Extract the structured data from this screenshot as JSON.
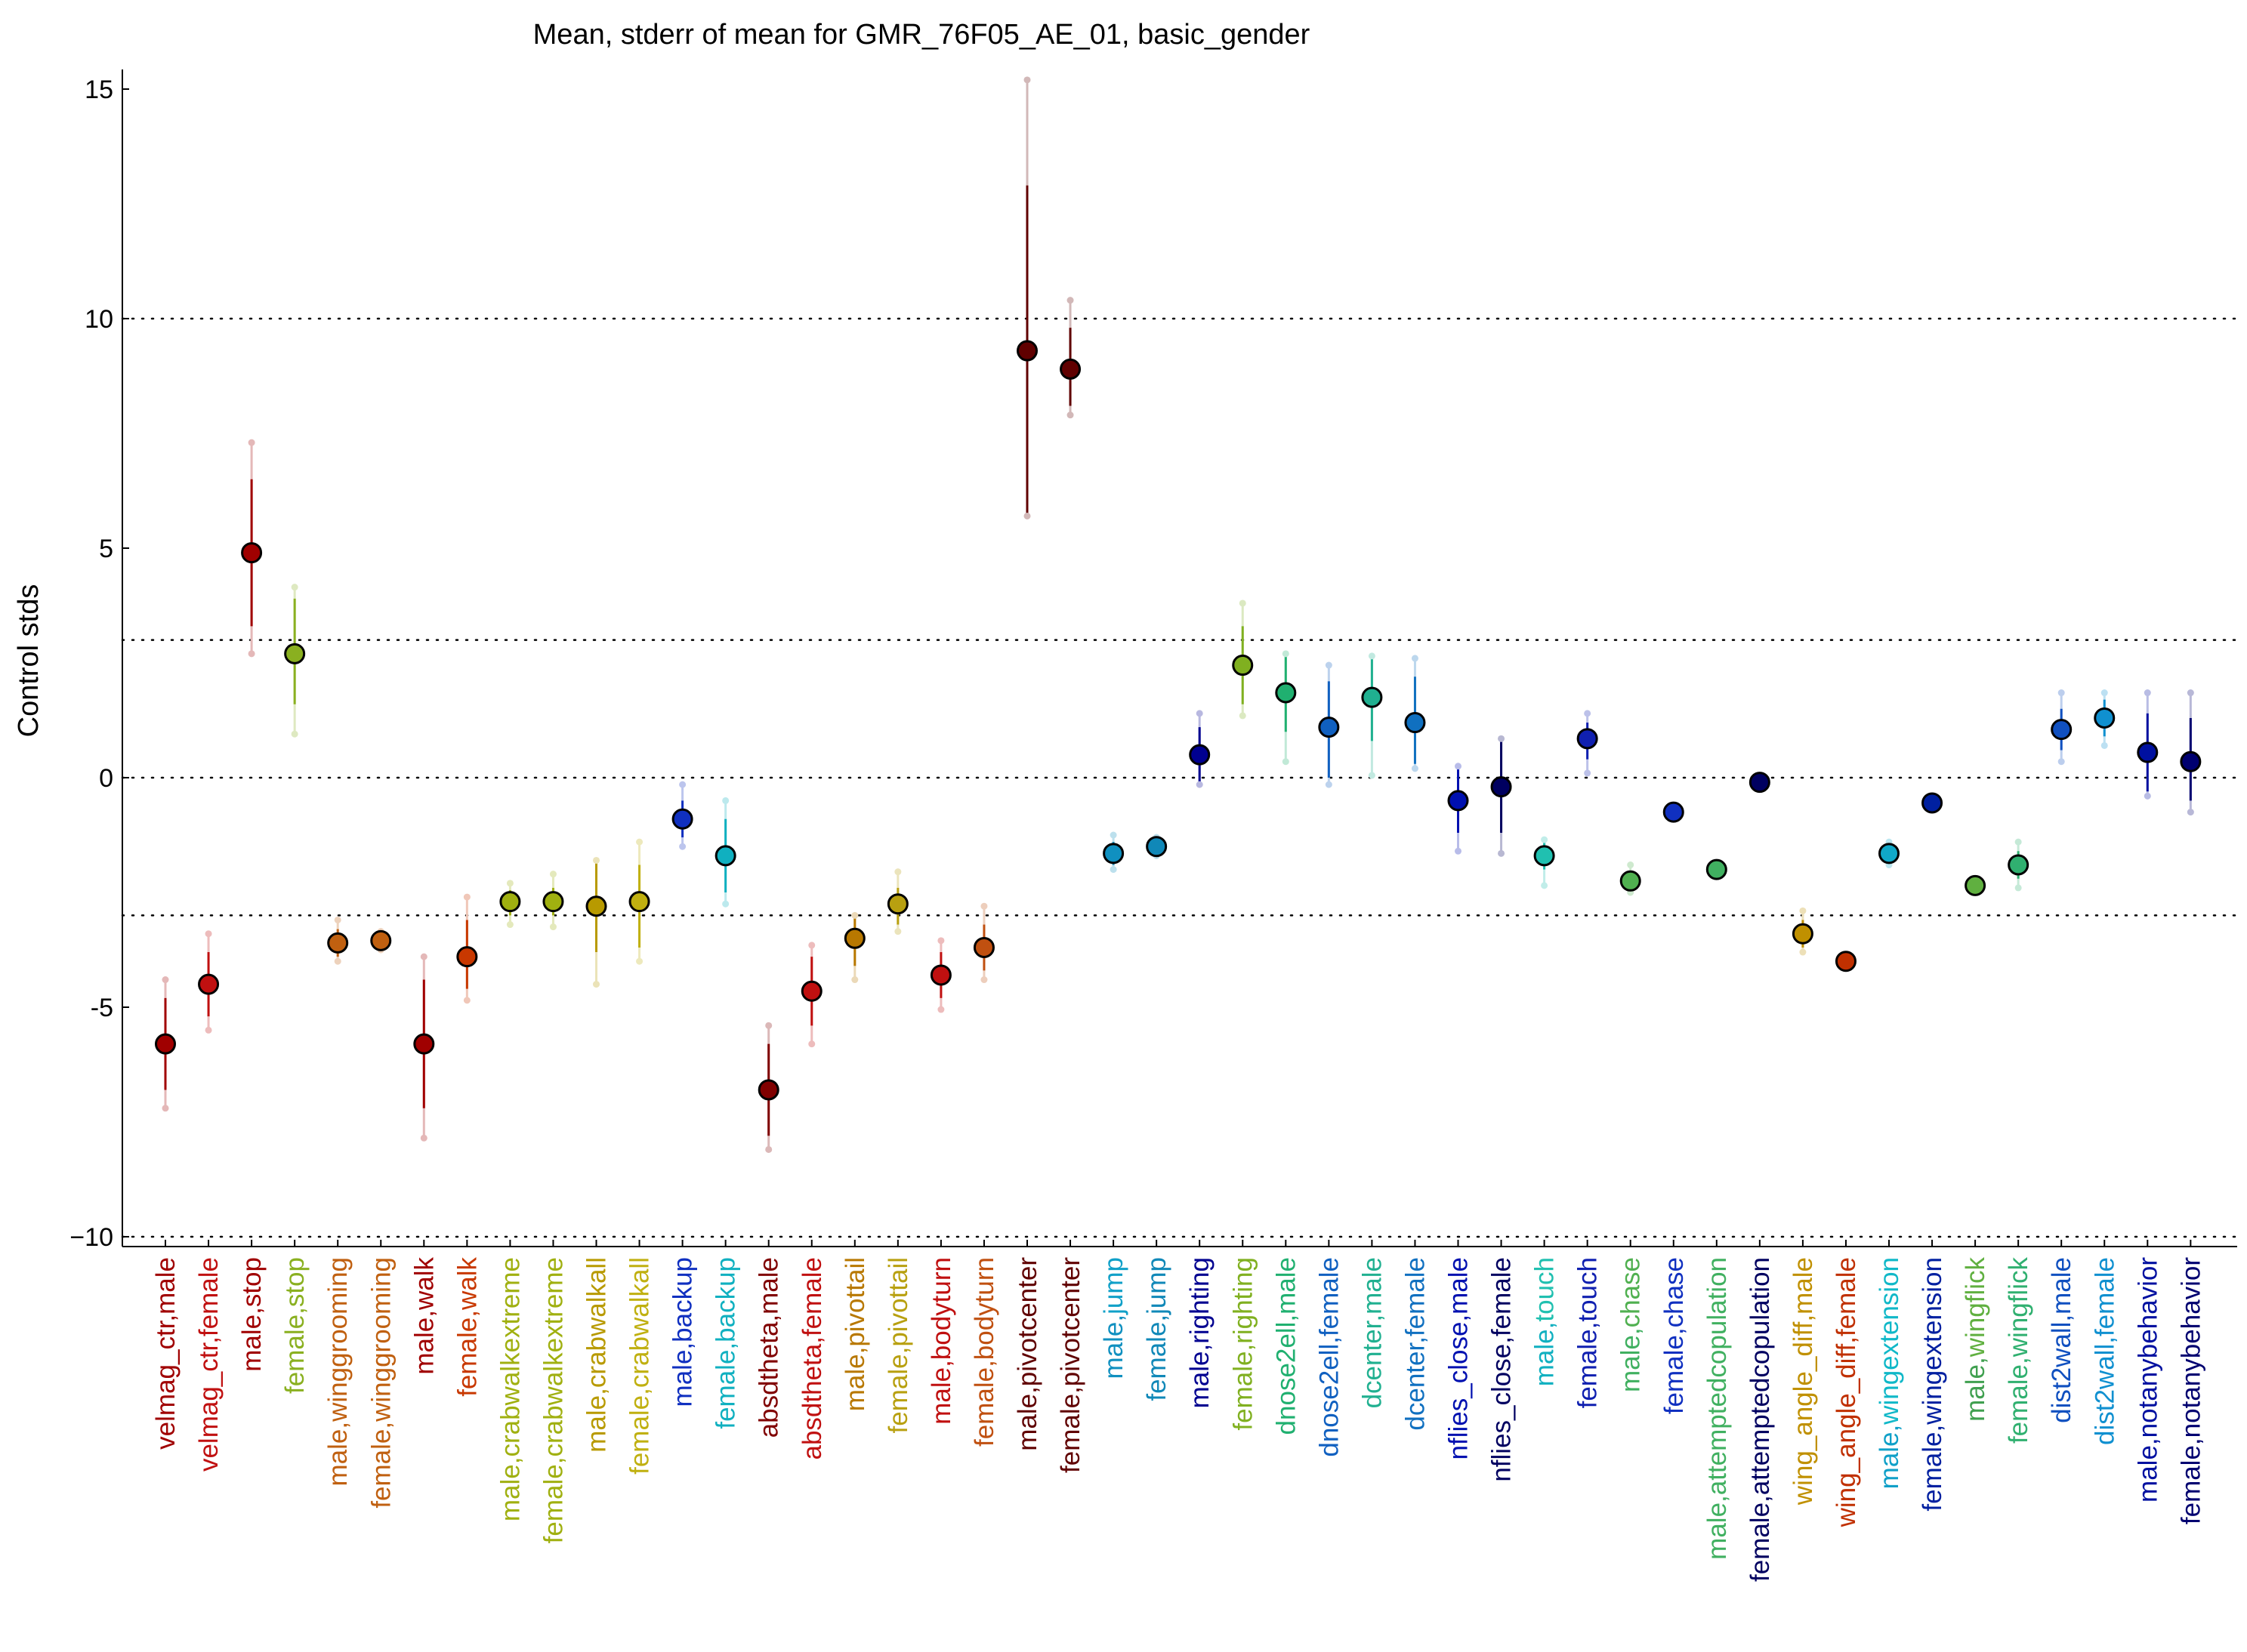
{
  "chart_data": {
    "type": "scatter",
    "title": "Mean, stderr of mean for GMR_76F05_AE_01, basic_gender",
    "xlabel": "",
    "ylabel": "Control stds",
    "ylim": [
      -10.3,
      15.5
    ],
    "yticks": [
      -10,
      -5,
      0,
      5,
      10,
      15
    ],
    "ytick_labels": [
      "−10",
      "-5",
      "0",
      "5",
      "10",
      "15"
    ],
    "reference_lines": [
      10,
      3,
      0,
      -3,
      -10
    ],
    "grid": false,
    "legend": "none",
    "points": [
      {
        "category": "velmag_ctr,male",
        "parts": [
          {
            "t": "velmag_ctr,male",
            "c": "#a00000"
          }
        ],
        "color": "#a00000",
        "mean": -5.8,
        "err_lo": -6.8,
        "err_hi": -4.8,
        "range_lo": -7.2,
        "range_hi": -4.4
      },
      {
        "category": "velmag_ctr,female",
        "parts": [
          {
            "t": "velmag_ctr,female",
            "c": "#c01010"
          }
        ],
        "color": "#c01010",
        "mean": -4.5,
        "err_lo": -5.2,
        "err_hi": -3.8,
        "range_lo": -5.5,
        "range_hi": -3.4
      },
      {
        "category": "male,stop",
        "parts": [
          {
            "t": "male,stop",
            "c": "#a00000"
          }
        ],
        "color": "#a00000",
        "mean": 4.9,
        "err_lo": 3.3,
        "err_hi": 6.5,
        "range_lo": 2.7,
        "range_hi": 7.3
      },
      {
        "category": "female,stop",
        "parts": [
          {
            "t": "female,stop",
            "c": "#8ab020"
          }
        ],
        "color": "#8ab020",
        "mean": 2.7,
        "err_lo": 1.6,
        "err_hi": 3.9,
        "range_lo": 0.95,
        "range_hi": 4.15
      },
      {
        "category": "male,winggrooming",
        "parts": [
          {
            "t": "male,winggrooming",
            "c": "#c06010"
          }
        ],
        "color": "#c06010",
        "mean": -3.6,
        "err_lo": -3.9,
        "err_hi": -3.3,
        "range_lo": -4.0,
        "range_hi": -3.1
      },
      {
        "category": "female,winggrooming",
        "parts": [
          {
            "t": "female,winggrooming",
            "c": "#c06010"
          }
        ],
        "color": "#c06010",
        "mean": -3.55,
        "err_lo": -3.7,
        "err_hi": -3.4,
        "range_lo": -3.75,
        "range_hi": -3.35
      },
      {
        "category": "male,walk",
        "parts": [
          {
            "t": "male,walk",
            "c": "#a00000"
          }
        ],
        "color": "#a00000",
        "mean": -5.8,
        "err_lo": -7.2,
        "err_hi": -4.4,
        "range_lo": -7.85,
        "range_hi": -3.9
      },
      {
        "category": "female,walk",
        "parts": [
          {
            "t": "female,walk",
            "c": "#c83800"
          }
        ],
        "color": "#c83800",
        "mean": -3.9,
        "err_lo": -4.6,
        "err_hi": -3.1,
        "range_lo": -4.85,
        "range_hi": -2.6
      },
      {
        "category": "male,crabwalkextreme",
        "parts": [
          {
            "t": "male,crabwalkextreme",
            "c": "#a0b010"
          }
        ],
        "color": "#a0b010",
        "mean": -2.7,
        "err_lo": -3.0,
        "err_hi": -2.45,
        "range_lo": -3.2,
        "range_hi": -2.3
      },
      {
        "category": "female,crabwalkextreme",
        "parts": [
          {
            "t": "female,crabwalkextreme",
            "c": "#a0b010"
          }
        ],
        "color": "#a0b010",
        "mean": -2.7,
        "err_lo": -3.0,
        "err_hi": -2.4,
        "range_lo": -3.25,
        "range_hi": -2.1
      },
      {
        "category": "male,crabwalkall",
        "parts": [
          {
            "t": "male,crabwalkall",
            "c": "#b89a00"
          }
        ],
        "color": "#b89a00",
        "mean": -2.8,
        "err_lo": -3.8,
        "err_hi": -1.8,
        "range_lo": -4.5,
        "range_hi": -1.8
      },
      {
        "category": "female,crabwalkall",
        "parts": [
          {
            "t": "female,crabwalkall",
            "c": "#c0b010"
          }
        ],
        "color": "#c0b010",
        "mean": -2.7,
        "err_lo": -3.7,
        "err_hi": -1.9,
        "range_lo": -4.0,
        "range_hi": -1.4
      },
      {
        "category": "male,backup",
        "parts": [
          {
            "t": "male,backup",
            "c": "#1030c0"
          }
        ],
        "color": "#1030c0",
        "mean": -0.9,
        "err_lo": -1.3,
        "err_hi": -0.5,
        "range_lo": -1.5,
        "range_hi": -0.15
      },
      {
        "category": "female,backup",
        "parts": [
          {
            "t": "female,backup",
            "c": "#10b0c0"
          }
        ],
        "color": "#10b0c0",
        "mean": -1.7,
        "err_lo": -2.5,
        "err_hi": -0.9,
        "range_lo": -2.75,
        "range_hi": -0.5
      },
      {
        "category": "absdtheta,male",
        "parts": [
          {
            "t": "absdtheta,male",
            "c": "#800000"
          }
        ],
        "color": "#800000",
        "mean": -6.8,
        "err_lo": -7.8,
        "err_hi": -5.8,
        "range_lo": -8.1,
        "range_hi": -5.4
      },
      {
        "category": "absdtheta,female",
        "parts": [
          {
            "t": "absdtheta,female",
            "c": "#c01010"
          }
        ],
        "color": "#c01010",
        "mean": -4.65,
        "err_lo": -5.4,
        "err_hi": -3.9,
        "range_lo": -5.8,
        "range_hi": -3.65
      },
      {
        "category": "male,pivottail",
        "parts": [
          {
            "t": "male,pivottail",
            "c": "#b87800"
          }
        ],
        "color": "#b87800",
        "mean": -3.5,
        "err_lo": -4.1,
        "err_hi": -3.0,
        "range_lo": -4.4,
        "range_hi": -3.0
      },
      {
        "category": "female,pivottail",
        "parts": [
          {
            "t": "female,pivottail",
            "c": "#b8a010"
          }
        ],
        "color": "#b8a010",
        "mean": -2.75,
        "err_lo": -3.2,
        "err_hi": -2.4,
        "range_lo": -3.35,
        "range_hi": -2.05
      },
      {
        "category": "male,bodyturn",
        "parts": [
          {
            "t": "male,bodyturn",
            "c": "#c01010"
          }
        ],
        "color": "#c01010",
        "mean": -4.3,
        "err_lo": -4.8,
        "err_hi": -3.8,
        "range_lo": -5.05,
        "range_hi": -3.55
      },
      {
        "category": "female,bodyturn",
        "parts": [
          {
            "t": "female,bodyturn",
            "c": "#c05010"
          }
        ],
        "color": "#c05010",
        "mean": -3.7,
        "err_lo": -4.2,
        "err_hi": -3.2,
        "range_lo": -4.4,
        "range_hi": -2.8
      },
      {
        "category": "male,pivotcenter",
        "parts": [
          {
            "t": "male,pivotcenter",
            "c": "#600000"
          }
        ],
        "color": "#600000",
        "mean": 9.3,
        "err_lo": 5.7,
        "err_hi": 12.9,
        "range_lo": 5.7,
        "range_hi": 15.2
      },
      {
        "category": "female,pivotcenter",
        "parts": [
          {
            "t": "female,pivotcenter",
            "c": "#600000"
          }
        ],
        "color": "#600000",
        "mean": 8.9,
        "err_lo": 8.1,
        "err_hi": 9.8,
        "range_lo": 7.9,
        "range_hi": 10.4
      },
      {
        "category": "male,jump",
        "parts": [
          {
            "t": "male,",
            "c": "#1090c0"
          },
          {
            "t": "jump",
            "c": "#10a0c8"
          }
        ],
        "color": "#1090c0",
        "mean": -1.65,
        "err_lo": -1.9,
        "err_hi": -1.4,
        "range_lo": -2.0,
        "range_hi": -1.25
      },
      {
        "category": "female,jump",
        "parts": [
          {
            "t": "female,jump",
            "c": "#1088b8"
          }
        ],
        "color": "#1088b8",
        "mean": -1.5,
        "err_lo": -1.6,
        "err_hi": -1.4,
        "range_lo": -1.7,
        "range_hi": -1.3
      },
      {
        "category": "male,righting",
        "parts": [
          {
            "t": "male,righting",
            "c": "#000090"
          }
        ],
        "color": "#000090",
        "mean": 0.5,
        "err_lo": -0.1,
        "err_hi": 1.1,
        "range_lo": -0.15,
        "range_hi": 1.4
      },
      {
        "category": "female,righting",
        "parts": [
          {
            "t": "female,righting",
            "c": "#80b020"
          }
        ],
        "color": "#80b020",
        "mean": 2.45,
        "err_lo": 1.6,
        "err_hi": 3.3,
        "range_lo": 1.35,
        "range_hi": 3.8
      },
      {
        "category": "dnose2ell,male",
        "parts": [
          {
            "t": "dnose2ell,male",
            "c": "#20b070"
          }
        ],
        "color": "#20b070",
        "mean": 1.85,
        "err_lo": 1.0,
        "err_hi": 2.7,
        "range_lo": 0.35,
        "range_hi": 2.7
      },
      {
        "category": "dnose2ell,female",
        "parts": [
          {
            "t": "dnose2ell,female",
            "c": "#1060c0"
          }
        ],
        "color": "#1060c0",
        "mean": 1.1,
        "err_lo": 0.0,
        "err_hi": 2.1,
        "range_lo": -0.15,
        "range_hi": 2.45
      },
      {
        "category": "dcenter,male",
        "parts": [
          {
            "t": "dcenter,male",
            "c": "#20b090"
          }
        ],
        "color": "#20b090",
        "mean": 1.75,
        "err_lo": 0.8,
        "err_hi": 2.6,
        "range_lo": 0.05,
        "range_hi": 2.65
      },
      {
        "category": "dcenter,female",
        "parts": [
          {
            "t": "dcenter,female",
            "c": "#1070c0"
          }
        ],
        "color": "#1070c0",
        "mean": 1.2,
        "err_lo": 0.3,
        "err_hi": 2.2,
        "range_lo": 0.2,
        "range_hi": 2.6
      },
      {
        "category": "nflies_close,male",
        "parts": [
          {
            "t": "nflies_close,male",
            "c": "#0010b0"
          }
        ],
        "color": "#0010b0",
        "mean": -0.5,
        "err_lo": -1.2,
        "err_hi": 0.2,
        "range_lo": -1.6,
        "range_hi": 0.25
      },
      {
        "category": "nflies_close,female",
        "parts": [
          {
            "t": "nflies_close,female",
            "c": "#000060"
          }
        ],
        "color": "#000060",
        "mean": -0.2,
        "err_lo": -1.2,
        "err_hi": 0.8,
        "range_lo": -1.65,
        "range_hi": 0.85
      },
      {
        "category": "male,touch",
        "parts": [
          {
            "t": "male,",
            "c": "#10b0c0"
          },
          {
            "t": "touch",
            "c": "#20c0b0"
          }
        ],
        "color": "#20c0b0",
        "mean": -1.7,
        "err_lo": -2.0,
        "err_hi": -1.4,
        "range_lo": -2.35,
        "range_hi": -1.35
      },
      {
        "category": "female,touch",
        "parts": [
          {
            "t": "female,touch",
            "c": "#1020b0"
          }
        ],
        "color": "#1020b0",
        "mean": 0.85,
        "err_lo": 0.4,
        "err_hi": 1.2,
        "range_lo": 0.1,
        "range_hi": 1.4
      },
      {
        "category": "male,chase",
        "parts": [
          {
            "t": "male,",
            "c": "#40b060"
          },
          {
            "t": "chase",
            "c": "#50b050"
          }
        ],
        "color": "#50b050",
        "mean": -2.25,
        "err_lo": -2.4,
        "err_hi": -2.1,
        "range_lo": -2.5,
        "range_hi": -1.9
      },
      {
        "category": "female,chase",
        "parts": [
          {
            "t": "female,chase",
            "c": "#1030c0"
          }
        ],
        "color": "#1030c0",
        "mean": -0.75,
        "err_lo": -0.85,
        "err_hi": -0.65,
        "range_lo": -0.9,
        "range_hi": -0.6
      },
      {
        "category": "male,attemptedcopulation",
        "parts": [
          {
            "t": "male,attemptedcopulation",
            "c": "#40b060"
          }
        ],
        "color": "#40b060",
        "mean": -2.0,
        "err_lo": -2.1,
        "err_hi": -1.9,
        "range_lo": -2.15,
        "range_hi": -1.85
      },
      {
        "category": "female,attemptedcopulation",
        "parts": [
          {
            "t": "female,attemptedcopulation",
            "c": "#000060"
          }
        ],
        "color": "#000060",
        "mean": -0.1,
        "err_lo": -0.2,
        "err_hi": 0.0,
        "range_lo": -0.25,
        "range_hi": 0.05
      },
      {
        "category": "wing_angle_diff,male",
        "parts": [
          {
            "t": "wing_angle_diff,male",
            "c": "#c09000"
          }
        ],
        "color": "#c09000",
        "mean": -3.4,
        "err_lo": -3.7,
        "err_hi": -3.1,
        "range_lo": -3.8,
        "range_hi": -2.9
      },
      {
        "category": "wing_angle_diff,female",
        "parts": [
          {
            "t": "wing_angle_diff,female",
            "c": "#c03000"
          }
        ],
        "color": "#c03000",
        "mean": -4.0,
        "err_lo": -4.05,
        "err_hi": -3.95,
        "range_lo": -4.1,
        "range_hi": -3.9
      },
      {
        "category": "male,wingextension",
        "parts": [
          {
            "t": "male,",
            "c": "#10a0c8"
          },
          {
            "t": "wingextension",
            "c": "#10b8c8"
          }
        ],
        "color": "#10a8c8",
        "mean": -1.65,
        "err_lo": -1.8,
        "err_hi": -1.5,
        "range_lo": -1.9,
        "range_hi": -1.4
      },
      {
        "category": "female,wingextension",
        "parts": [
          {
            "t": "female,wingextension",
            "c": "#0020a0"
          }
        ],
        "color": "#0020a0",
        "mean": -0.55,
        "err_lo": -0.6,
        "err_hi": -0.5,
        "range_lo": -0.65,
        "range_hi": -0.45
      },
      {
        "category": "male,wingflick",
        "parts": [
          {
            "t": "male,",
            "c": "#40a050"
          },
          {
            "t": "wingflick",
            "c": "#60b040"
          }
        ],
        "color": "#60b040",
        "mean": -2.35,
        "err_lo": -2.45,
        "err_hi": -2.25,
        "range_lo": -2.5,
        "range_hi": -2.2
      },
      {
        "category": "female,wingflick",
        "parts": [
          {
            "t": "female,wingflick",
            "c": "#30b070"
          }
        ],
        "color": "#30b070",
        "mean": -1.9,
        "err_lo": -2.2,
        "err_hi": -1.6,
        "range_lo": -2.4,
        "range_hi": -1.4
      },
      {
        "category": "dist2wall,male",
        "parts": [
          {
            "t": "dist2wall,male",
            "c": "#1050c0"
          }
        ],
        "color": "#1050c0",
        "mean": 1.05,
        "err_lo": 0.6,
        "err_hi": 1.5,
        "range_lo": 0.35,
        "range_hi": 1.85
      },
      {
        "category": "dist2wall,female",
        "parts": [
          {
            "t": "dist2wall,female",
            "c": "#1090d0"
          }
        ],
        "color": "#1090d0",
        "mean": 1.3,
        "err_lo": 0.9,
        "err_hi": 1.7,
        "range_lo": 0.7,
        "range_hi": 1.85
      },
      {
        "category": "male,notanybehavior",
        "parts": [
          {
            "t": "male,notanybehavior",
            "c": "#0010a0"
          }
        ],
        "color": "#0010a0",
        "mean": 0.55,
        "err_lo": -0.3,
        "err_hi": 1.4,
        "range_lo": -0.4,
        "range_hi": 1.85
      },
      {
        "category": "female,notanybehavior",
        "parts": [
          {
            "t": "female,notanybehavior",
            "c": "#000070"
          }
        ],
        "color": "#000070",
        "mean": 0.35,
        "err_lo": -0.5,
        "err_hi": 1.3,
        "range_lo": -0.75,
        "range_hi": 1.85
      }
    ]
  }
}
